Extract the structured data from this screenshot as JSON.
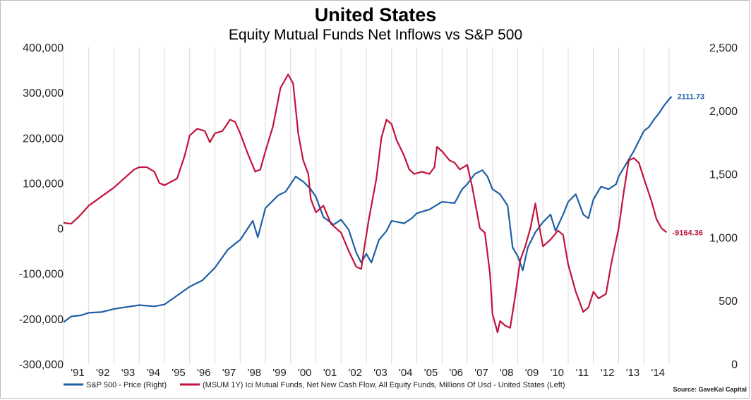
{
  "title": "United States",
  "subtitle": "Equity Mutual Funds Net Inflows vs S&P 500",
  "source": "Source: GaveKal Capital",
  "chart_data": {
    "type": "line",
    "grid": "vertical",
    "x_ticks": [
      "'91",
      "'92",
      "'93",
      "'94",
      "'95",
      "'96",
      "'97",
      "'98",
      "'99",
      "'00",
      "'01",
      "'02",
      "'03",
      "'04",
      "'05",
      "'06",
      "'07",
      "'08",
      "'09",
      "'10",
      "'11",
      "'12",
      "'13",
      "'14"
    ],
    "x_range": [
      1991.0,
      2015.0
    ],
    "left_axis": {
      "ticks": [
        "400,000",
        "300,000",
        "200,000",
        "100,000",
        "0",
        "-100,000",
        "-200,000",
        "-300,000"
      ],
      "tick_values": [
        400000,
        300000,
        200000,
        100000,
        0,
        -100000,
        -200000,
        -300000
      ],
      "range": [
        -300000,
        400000
      ]
    },
    "right_axis": {
      "ticks": [
        "2,500",
        "2,000",
        "1,500",
        "1,000",
        "500",
        "0"
      ],
      "tick_values": [
        2500,
        2000,
        1500,
        1000,
        500,
        0
      ],
      "range": [
        0,
        2500
      ]
    },
    "series": [
      {
        "name": "S&P 500 - Price  (Right)",
        "axis": "right",
        "color": "#1f5fa6",
        "end_label": "2111.73",
        "points": [
          [
            1991.0,
            330
          ],
          [
            1991.3,
            375
          ],
          [
            1991.7,
            385
          ],
          [
            1992.0,
            405
          ],
          [
            1992.5,
            410
          ],
          [
            1993.0,
            435
          ],
          [
            1993.5,
            450
          ],
          [
            1994.0,
            465
          ],
          [
            1994.3,
            460
          ],
          [
            1994.6,
            455
          ],
          [
            1995.0,
            470
          ],
          [
            1995.5,
            540
          ],
          [
            1996.0,
            610
          ],
          [
            1996.5,
            660
          ],
          [
            1997.0,
            760
          ],
          [
            1997.5,
            900
          ],
          [
            1997.8,
            950
          ],
          [
            1998.0,
            980
          ],
          [
            1998.5,
            1130
          ],
          [
            1998.7,
            1000
          ],
          [
            1999.0,
            1230
          ],
          [
            1999.5,
            1330
          ],
          [
            1999.8,
            1360
          ],
          [
            2000.0,
            1420
          ],
          [
            2000.2,
            1480
          ],
          [
            2000.5,
            1440
          ],
          [
            2000.8,
            1380
          ],
          [
            2001.0,
            1320
          ],
          [
            2001.3,
            1160
          ],
          [
            2001.7,
            1100
          ],
          [
            2002.0,
            1140
          ],
          [
            2002.3,
            1060
          ],
          [
            2002.6,
            880
          ],
          [
            2002.8,
            800
          ],
          [
            2003.0,
            870
          ],
          [
            2003.2,
            800
          ],
          [
            2003.5,
            980
          ],
          [
            2003.8,
            1050
          ],
          [
            2004.0,
            1130
          ],
          [
            2004.5,
            1110
          ],
          [
            2004.8,
            1150
          ],
          [
            2005.0,
            1190
          ],
          [
            2005.5,
            1220
          ],
          [
            2006.0,
            1280
          ],
          [
            2006.5,
            1270
          ],
          [
            2006.8,
            1380
          ],
          [
            2007.0,
            1420
          ],
          [
            2007.3,
            1500
          ],
          [
            2007.6,
            1530
          ],
          [
            2007.8,
            1480
          ],
          [
            2008.0,
            1380
          ],
          [
            2008.3,
            1340
          ],
          [
            2008.6,
            1250
          ],
          [
            2008.8,
            920
          ],
          [
            2009.0,
            850
          ],
          [
            2009.2,
            740
          ],
          [
            2009.4,
            920
          ],
          [
            2009.7,
            1040
          ],
          [
            2010.0,
            1120
          ],
          [
            2010.3,
            1180
          ],
          [
            2010.5,
            1050
          ],
          [
            2010.8,
            1180
          ],
          [
            2011.0,
            1280
          ],
          [
            2011.3,
            1340
          ],
          [
            2011.6,
            1180
          ],
          [
            2011.8,
            1150
          ],
          [
            2012.0,
            1300
          ],
          [
            2012.3,
            1400
          ],
          [
            2012.6,
            1380
          ],
          [
            2012.9,
            1420
          ],
          [
            2013.0,
            1480
          ],
          [
            2013.3,
            1580
          ],
          [
            2013.6,
            1680
          ],
          [
            2013.9,
            1800
          ],
          [
            2014.0,
            1840
          ],
          [
            2014.2,
            1870
          ],
          [
            2014.4,
            1930
          ],
          [
            2014.6,
            1980
          ],
          [
            2014.8,
            2040
          ],
          [
            2015.0,
            2090
          ],
          [
            2015.1,
            2111.73
          ]
        ]
      },
      {
        "name": "(MSUM 1Y) Ici Mutual Funds, Net New Cash Flow, All Equity Funds, Millions Of Usd - United States  (Left)",
        "axis": "left",
        "color": "#c0143c",
        "end_label": "-9164.36",
        "points": [
          [
            1991.0,
            12000
          ],
          [
            1991.3,
            10000
          ],
          [
            1991.6,
            25000
          ],
          [
            1992.0,
            50000
          ],
          [
            1992.5,
            70000
          ],
          [
            1993.0,
            90000
          ],
          [
            1993.5,
            115000
          ],
          [
            1993.8,
            130000
          ],
          [
            1994.0,
            135000
          ],
          [
            1994.3,
            135000
          ],
          [
            1994.6,
            125000
          ],
          [
            1994.8,
            100000
          ],
          [
            1995.0,
            95000
          ],
          [
            1995.5,
            110000
          ],
          [
            1995.8,
            160000
          ],
          [
            1996.0,
            205000
          ],
          [
            1996.3,
            220000
          ],
          [
            1996.6,
            215000
          ],
          [
            1996.8,
            190000
          ],
          [
            1997.0,
            210000
          ],
          [
            1997.3,
            215000
          ],
          [
            1997.6,
            240000
          ],
          [
            1997.8,
            235000
          ],
          [
            1998.0,
            210000
          ],
          [
            1998.3,
            165000
          ],
          [
            1998.6,
            125000
          ],
          [
            1998.8,
            130000
          ],
          [
            1999.0,
            170000
          ],
          [
            1999.3,
            225000
          ],
          [
            1999.6,
            310000
          ],
          [
            1999.9,
            340000
          ],
          [
            2000.1,
            320000
          ],
          [
            2000.3,
            210000
          ],
          [
            2000.5,
            150000
          ],
          [
            2000.7,
            120000
          ],
          [
            2000.8,
            65000
          ],
          [
            2001.0,
            35000
          ],
          [
            2001.3,
            50000
          ],
          [
            2001.6,
            10000
          ],
          [
            2001.8,
            0
          ],
          [
            2002.0,
            -10000
          ],
          [
            2002.3,
            -50000
          ],
          [
            2002.6,
            -85000
          ],
          [
            2002.8,
            -90000
          ],
          [
            2002.9,
            -50000
          ],
          [
            2003.1,
            20000
          ],
          [
            2003.4,
            110000
          ],
          [
            2003.6,
            200000
          ],
          [
            2003.8,
            240000
          ],
          [
            2004.0,
            230000
          ],
          [
            2004.2,
            195000
          ],
          [
            2004.5,
            160000
          ],
          [
            2004.7,
            130000
          ],
          [
            2004.9,
            120000
          ],
          [
            2005.2,
            125000
          ],
          [
            2005.5,
            120000
          ],
          [
            2005.7,
            135000
          ],
          [
            2005.8,
            180000
          ],
          [
            2006.0,
            170000
          ],
          [
            2006.3,
            150000
          ],
          [
            2006.5,
            145000
          ],
          [
            2006.7,
            130000
          ],
          [
            2007.0,
            140000
          ],
          [
            2007.2,
            90000
          ],
          [
            2007.5,
            0
          ],
          [
            2007.7,
            -10000
          ],
          [
            2007.9,
            -100000
          ],
          [
            2008.0,
            -190000
          ],
          [
            2008.2,
            -230000
          ],
          [
            2008.3,
            -205000
          ],
          [
            2008.5,
            -215000
          ],
          [
            2008.7,
            -220000
          ],
          [
            2008.9,
            -150000
          ],
          [
            2009.1,
            -70000
          ],
          [
            2009.3,
            -40000
          ],
          [
            2009.5,
            0
          ],
          [
            2009.7,
            55000
          ],
          [
            2009.8,
            20000
          ],
          [
            2010.0,
            -40000
          ],
          [
            2010.3,
            -25000
          ],
          [
            2010.6,
            -5000
          ],
          [
            2010.8,
            -15000
          ],
          [
            2011.0,
            -80000
          ],
          [
            2011.3,
            -140000
          ],
          [
            2011.6,
            -185000
          ],
          [
            2011.8,
            -175000
          ],
          [
            2012.0,
            -140000
          ],
          [
            2012.2,
            -155000
          ],
          [
            2012.5,
            -145000
          ],
          [
            2012.7,
            -80000
          ],
          [
            2013.0,
            0
          ],
          [
            2013.2,
            80000
          ],
          [
            2013.4,
            150000
          ],
          [
            2013.6,
            155000
          ],
          [
            2013.8,
            145000
          ],
          [
            2014.0,
            110000
          ],
          [
            2014.3,
            60000
          ],
          [
            2014.5,
            20000
          ],
          [
            2014.7,
            0
          ],
          [
            2014.9,
            -9164.36
          ]
        ]
      }
    ]
  }
}
